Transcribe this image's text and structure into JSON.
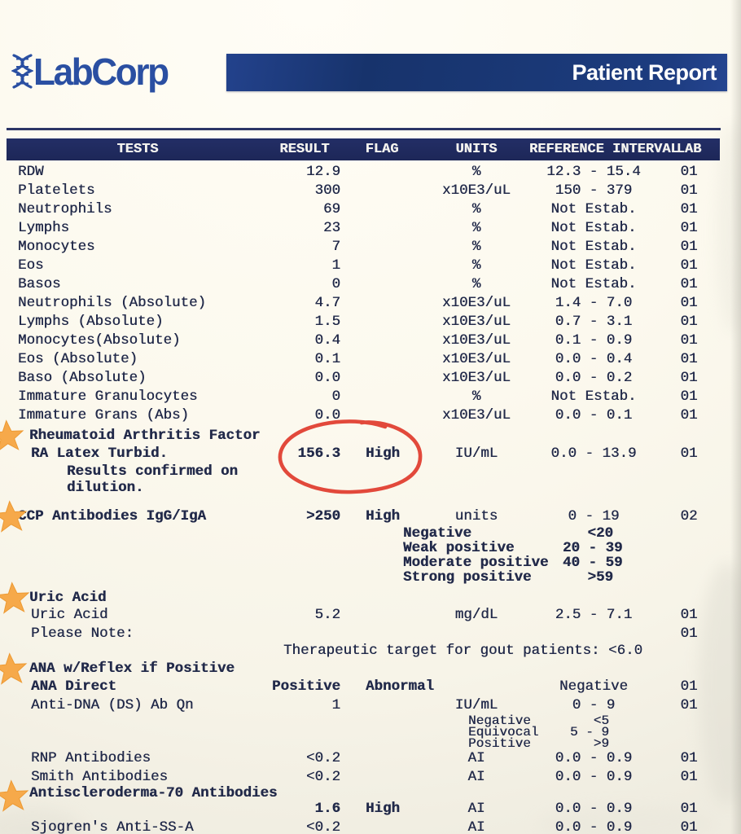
{
  "header": {
    "brand": "LabCorp",
    "report_title": "Patient Report"
  },
  "colors": {
    "brand_blue": "#2a4fa2",
    "report_bar_navy": "#1a3876",
    "table_header_navy": "#202a5e",
    "ink": "#222a4a",
    "star_orange": "#f6a94a",
    "annotation_red": "#e03a2b",
    "paper": "#fcf9ee"
  },
  "annotations": {
    "red_circle_around": "156.3 High",
    "starred_sections": [
      "Rheumatoid Arthritis Factor",
      "CCP Antibodies IgG/IgA",
      "Uric Acid",
      "ANA w/Reflex if Positive",
      "Antiscleroderma-70 Antibodies"
    ]
  },
  "table": {
    "columns": [
      "TESTS",
      "RESULT",
      "FLAG",
      "UNITS",
      "REFERENCE INTERVAL",
      "LAB"
    ],
    "rows": [
      {
        "type": "data",
        "name": "RDW",
        "result": "12.9",
        "flag": "",
        "units": "%",
        "ref": "12.3 - 15.4",
        "lab": "01"
      },
      {
        "type": "data",
        "name": "Platelets",
        "result": "300",
        "flag": "",
        "units": "x10E3/uL",
        "ref": "150 - 379",
        "lab": "01"
      },
      {
        "type": "data",
        "name": "Neutrophils",
        "result": "69",
        "flag": "",
        "units": "%",
        "ref": "Not Estab.",
        "lab": "01"
      },
      {
        "type": "data",
        "name": "Lymphs",
        "result": "23",
        "flag": "",
        "units": "%",
        "ref": "Not Estab.",
        "lab": "01"
      },
      {
        "type": "data",
        "name": "Monocytes",
        "result": "7",
        "flag": "",
        "units": "%",
        "ref": "Not Estab.",
        "lab": "01"
      },
      {
        "type": "data",
        "name": "Eos",
        "result": "1",
        "flag": "",
        "units": "%",
        "ref": "Not Estab.",
        "lab": "01"
      },
      {
        "type": "data",
        "name": "Basos",
        "result": "0",
        "flag": "",
        "units": "%",
        "ref": "Not Estab.",
        "lab": "01"
      },
      {
        "type": "data",
        "name": "Neutrophils (Absolute)",
        "result": "4.7",
        "flag": "",
        "units": "x10E3/uL",
        "ref": "1.4 - 7.0",
        "lab": "01"
      },
      {
        "type": "data",
        "name": "Lymphs (Absolute)",
        "result": "1.5",
        "flag": "",
        "units": "x10E3/uL",
        "ref": "0.7 - 3.1",
        "lab": "01"
      },
      {
        "type": "data",
        "name": "Monocytes(Absolute)",
        "result": "0.4",
        "flag": "",
        "units": "x10E3/uL",
        "ref": "0.1 - 0.9",
        "lab": "01"
      },
      {
        "type": "data",
        "name": "Eos (Absolute)",
        "result": "0.1",
        "flag": "",
        "units": "x10E3/uL",
        "ref": "0.0 - 0.4",
        "lab": "01"
      },
      {
        "type": "data",
        "name": "Baso (Absolute)",
        "result": "0.0",
        "flag": "",
        "units": "x10E3/uL",
        "ref": "0.0 - 0.2",
        "lab": "01"
      },
      {
        "type": "data",
        "name": "Immature Granulocytes",
        "result": "0",
        "flag": "",
        "units": "%",
        "ref": "Not Estab.",
        "lab": "01"
      },
      {
        "type": "data",
        "name": "Immature Grans (Abs)",
        "result": "0.0",
        "flag": "",
        "units": "x10E3/uL",
        "ref": "0.0 - 0.1",
        "lab": "01"
      },
      {
        "type": "section",
        "id": "ra",
        "star": true,
        "name": "Rheumatoid Arthritis Factor"
      },
      {
        "type": "data",
        "id": "ra-latex",
        "indent": true,
        "name_bold": true,
        "result_bold": true,
        "circled": true,
        "name": "RA Latex Turbid.",
        "result": "156.3",
        "flag": "High",
        "units": "IU/mL",
        "ref": "0.0 - 13.9",
        "lab": "01"
      },
      {
        "type": "note",
        "text": "Results confirmed on"
      },
      {
        "type": "note",
        "text": "dilution."
      },
      {
        "type": "section-data",
        "id": "ccp",
        "star": true,
        "result_bold": true,
        "name": "CCP Antibodies IgG/IgA",
        "result": ">250",
        "flag": "High",
        "units": "units",
        "ref": "0 - 19",
        "lab": "02"
      },
      {
        "type": "scale",
        "label": "Negative",
        "value": "<20"
      },
      {
        "type": "scale",
        "label": "Weak positive",
        "value": "20 - 39"
      },
      {
        "type": "scale",
        "label": "Moderate positive",
        "value": "40 - 59"
      },
      {
        "type": "scale",
        "label": "Strong positive",
        "value": ">59"
      },
      {
        "type": "section",
        "id": "uric",
        "star": true,
        "name": "Uric Acid"
      },
      {
        "type": "data",
        "indent": true,
        "name": "Uric Acid",
        "result": "5.2",
        "flag": "",
        "units": "mg/dL",
        "ref": "2.5 - 7.1",
        "lab": "01"
      },
      {
        "type": "data",
        "indent": true,
        "name": "Please Note:",
        "result": "",
        "flag": "",
        "units": "",
        "ref": "",
        "lab": "01"
      },
      {
        "type": "note-wide",
        "text": "Therapeutic target for gout patients: <6.0"
      },
      {
        "type": "section",
        "id": "ana",
        "star": true,
        "name": "ANA w/Reflex if Positive"
      },
      {
        "type": "data",
        "indent": true,
        "name_bold": true,
        "result_bold": true,
        "name": "ANA Direct",
        "result": "Positive",
        "flag": "Abnormal",
        "units": "",
        "ref": "Negative",
        "lab": "01"
      },
      {
        "type": "data",
        "indent": true,
        "name": "Anti-DNA (DS) Ab Qn",
        "result": "1",
        "flag": "",
        "units": "IU/mL",
        "ref": "0 - 9",
        "lab": "01"
      },
      {
        "type": "scale2",
        "label": "Negative",
        "value": "<5"
      },
      {
        "type": "scale2",
        "label": "Equivocal",
        "value": "5 - 9"
      },
      {
        "type": "scale2",
        "label": "Positive",
        "value": ">9"
      },
      {
        "type": "data",
        "id": "rnp",
        "indent": true,
        "name": "RNP Antibodies",
        "result": "<0.2",
        "flag": "",
        "units": "AI",
        "ref": "0.0 - 0.9",
        "lab": "01"
      },
      {
        "type": "data",
        "indent": true,
        "name": "Smith Antibodies",
        "result": "<0.2",
        "flag": "",
        "units": "AI",
        "ref": "0.0 - 0.9",
        "lab": "01"
      },
      {
        "type": "section",
        "id": "sclero",
        "star": true,
        "name": "Antiscleroderma-70 Antibodies"
      },
      {
        "type": "data",
        "id": "sclero-result",
        "result_bold": true,
        "name": "",
        "result": "1.6",
        "flag": "High",
        "units": "AI",
        "ref": "0.0 - 0.9",
        "lab": "01"
      },
      {
        "type": "data",
        "indent": true,
        "name": "Sjogren's Anti-SS-A",
        "result": "<0.2",
        "flag": "",
        "units": "AI",
        "ref": "0.0 - 0.9",
        "lab": "01"
      }
    ]
  }
}
